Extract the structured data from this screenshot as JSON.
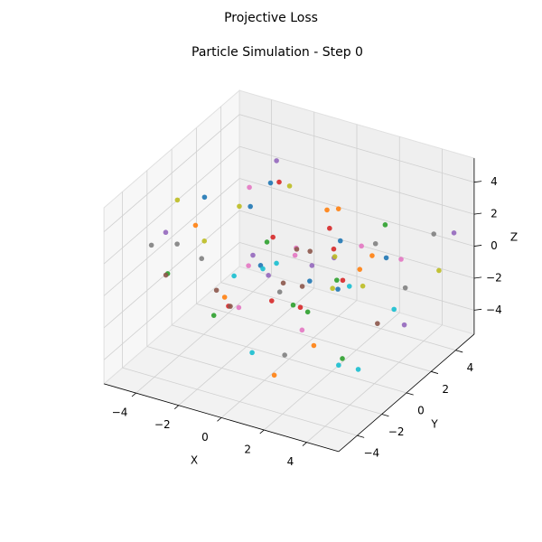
{
  "chart_data": {
    "type": "scatter3d",
    "suptitle": "Projective Loss",
    "title": "Particle Simulation - Step 0",
    "xlabel": "X",
    "ylabel": "Y",
    "zlabel": "Z",
    "xlim": [
      -5.5,
      5.5
    ],
    "ylim": [
      -5.5,
      5.5
    ],
    "zlim": [
      -5.5,
      5.5
    ],
    "xticks": [
      {
        "value": -4,
        "label": "−4"
      },
      {
        "value": -2,
        "label": "−2"
      },
      0,
      2,
      4
    ],
    "yticks": [
      {
        "value": -4,
        "label": "−4"
      },
      {
        "value": -2,
        "label": "−2"
      },
      0,
      2,
      4
    ],
    "zticks": [
      {
        "value": -4,
        "label": "−4"
      },
      {
        "value": -2,
        "label": "−2"
      },
      0,
      2,
      4
    ],
    "grid": true,
    "colors": [
      "#1f77b4",
      "#ff7f0e",
      "#2ca02c",
      "#d62728",
      "#9467bd",
      "#8c564b",
      "#e377c2",
      "#7f7f7f",
      "#bcbd22",
      "#17becf"
    ],
    "x": [
      -3.2,
      1.5,
      4.1,
      -0.7,
      2.8,
      -4.5,
      0.3,
      3.6,
      -2.1,
      4.8,
      -1.4,
      2.2,
      -3.9,
      0.9,
      -4.8,
      3.1,
      -0.2,
      1.8,
      -2.7,
      4.4,
      -3.5,
      0.6,
      2.5,
      -1.1,
      3.9,
      -4.1,
      1.2,
      -2.4,
      4.6,
      -0.5,
      2.0,
      -3.0,
      0.1,
      3.3,
      -1.8,
      4.2,
      -4.4,
      1.7,
      -0.9,
      2.9,
      -2.6,
      3.7,
      -3.7,
      0.4,
      4.9,
      -1.6,
      2.3,
      -4.9,
      1.0,
      -2.9,
      3.5,
      -0.3,
      4.0,
      -3.3,
      1.4,
      -1.2,
      2.7,
      -4.2,
      0.8,
      3.0,
      -2.2,
      4.7,
      -0.8,
      1.9,
      -3.6,
      2.6,
      -1.9,
      4.3,
      -4.6,
      0.0,
      3.4,
      -2.5,
      1.1,
      -0.1,
      2.4,
      -3.1,
      4.5,
      -1.5,
      0.7,
      -4.0
    ],
    "y": [
      2.4,
      -3.8,
      0.7,
      4.5,
      -1.2,
      1.9,
      -4.6,
      3.2,
      -0.4,
      -2.7,
      4.1,
      0.2,
      -3.1,
      2.8,
      -1.7,
      -4.3,
      1.4,
      3.9,
      -2.2,
      0.9,
      -0.8,
      4.7,
      -4.0,
      1.1,
      2.6,
      -2.9,
      -1.5,
      3.4,
      4.2,
      -3.6,
      0.5,
      -2.4,
      3.7,
      -4.8,
      2.1,
      -0.1,
      4.4,
      -3.3,
      1.6,
      -1.0,
      3.0,
      -4.4,
      0.3,
      -2.0,
      4.9,
      2.3,
      -3.5,
      -0.6,
      1.8,
      4.0,
      -1.9,
      3.6,
      -2.6,
      0.8,
      -4.1,
      2.7,
      1.2,
      -3.9,
      4.6,
      -0.3,
      1.5,
      -1.4,
      2.9,
      -4.7,
      3.3,
      -2.8,
      0.0,
      4.3,
      -1.1,
      -3.0,
      2.0,
      -0.9,
      -3.7,
      3.8,
      -2.3,
      0.6,
      1.3,
      -4.5,
      2.5,
      4.8
    ],
    "z": [
      1.2,
      -3.4,
      4.0,
      -0.6,
      2.7,
      -4.2,
      0.9,
      -1.8,
      3.5,
      -2.5,
      -3.9,
      4.6,
      0.4,
      -2.1,
      1.7,
      3.1,
      -4.7,
      -0.2,
      2.3,
      -1.3,
      3.8,
      -2.8,
      1.5,
      4.4,
      -3.6,
      0.1,
      2.9,
      -4.5,
      -1.0,
      1.9,
      -0.7,
      3.3,
      -3.0,
      2.2,
      4.8,
      -1.6,
      0.6,
      -2.4,
      3.9,
      -4.1,
      2.5,
      -0.3,
      -4.4,
      3.6,
      1.0,
      -2.9,
      4.2,
      0.2,
      -1.9,
      -3.3,
      4.5,
      1.3,
      -2.2,
      -4.0,
      3.0,
      -0.9,
      1.8,
      2.6,
      -3.7,
      0.4,
      -1.5,
      3.7,
      -4.8,
      2.0,
      -2.6,
      4.1,
      -0.4,
      1.1,
      3.4,
      -3.1,
      0.8,
      -2.0,
      4.7,
      -1.2,
      2.8,
      -3.8,
      1.6,
      3.2,
      -0.5,
      -4.6
    ]
  }
}
